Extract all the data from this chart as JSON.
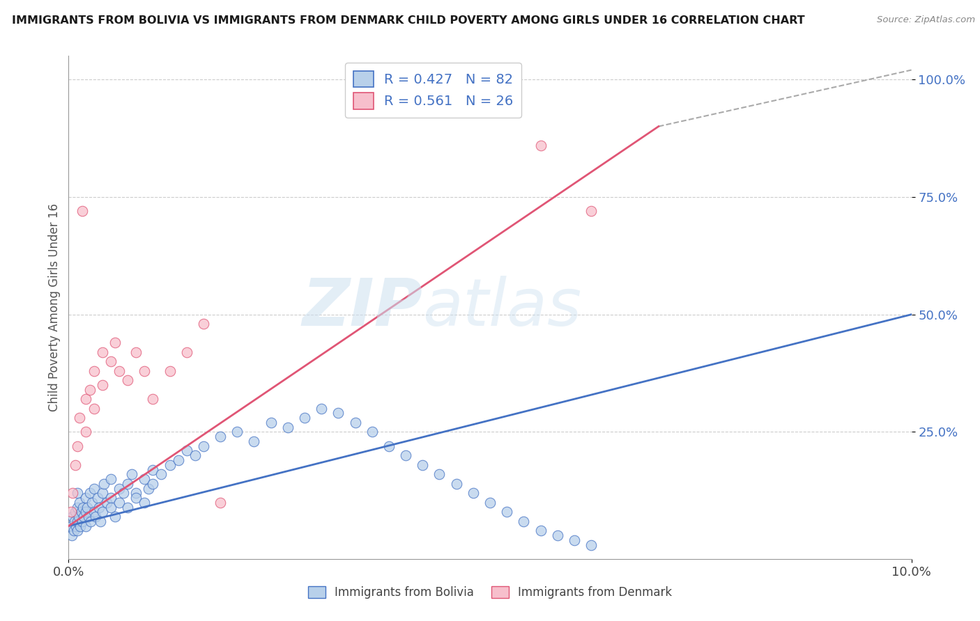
{
  "title": "IMMIGRANTS FROM BOLIVIA VS IMMIGRANTS FROM DENMARK CHILD POVERTY AMONG GIRLS UNDER 16 CORRELATION CHART",
  "source": "Source: ZipAtlas.com",
  "ylabel": "Child Poverty Among Girls Under 16",
  "xlim": [
    0.0,
    0.1
  ],
  "ylim": [
    -0.02,
    1.05
  ],
  "bolivia_R": 0.427,
  "bolivia_N": 82,
  "denmark_R": 0.561,
  "denmark_N": 26,
  "bolivia_color": "#b8d0ea",
  "denmark_color": "#f7bfcc",
  "bolivia_line_color": "#4472c4",
  "denmark_line_color": "#e05575",
  "bolivia_x": [
    0.0003,
    0.0004,
    0.0005,
    0.0006,
    0.0007,
    0.0008,
    0.0009,
    0.001,
    0.001,
    0.001,
    0.001,
    0.0012,
    0.0013,
    0.0014,
    0.0015,
    0.0016,
    0.0017,
    0.0018,
    0.002,
    0.002,
    0.002,
    0.0022,
    0.0024,
    0.0025,
    0.0026,
    0.0028,
    0.003,
    0.003,
    0.0032,
    0.0034,
    0.0036,
    0.0038,
    0.004,
    0.004,
    0.0042,
    0.0045,
    0.005,
    0.005,
    0.005,
    0.0055,
    0.006,
    0.006,
    0.0065,
    0.007,
    0.007,
    0.0075,
    0.008,
    0.008,
    0.009,
    0.009,
    0.0095,
    0.01,
    0.01,
    0.011,
    0.012,
    0.013,
    0.014,
    0.015,
    0.016,
    0.018,
    0.02,
    0.022,
    0.024,
    0.026,
    0.028,
    0.03,
    0.032,
    0.034,
    0.036,
    0.038,
    0.04,
    0.042,
    0.044,
    0.046,
    0.048,
    0.05,
    0.052,
    0.054,
    0.056,
    0.058,
    0.06,
    0.062
  ],
  "bolivia_y": [
    0.05,
    0.03,
    0.07,
    0.04,
    0.06,
    0.08,
    0.05,
    0.06,
    0.09,
    0.12,
    0.04,
    0.07,
    0.1,
    0.05,
    0.08,
    0.06,
    0.09,
    0.07,
    0.08,
    0.11,
    0.05,
    0.09,
    0.07,
    0.12,
    0.06,
    0.1,
    0.08,
    0.13,
    0.07,
    0.11,
    0.09,
    0.06,
    0.12,
    0.08,
    0.14,
    0.1,
    0.11,
    0.09,
    0.15,
    0.07,
    0.13,
    0.1,
    0.12,
    0.14,
    0.09,
    0.16,
    0.12,
    0.11,
    0.15,
    0.1,
    0.13,
    0.14,
    0.17,
    0.16,
    0.18,
    0.19,
    0.21,
    0.2,
    0.22,
    0.24,
    0.25,
    0.23,
    0.27,
    0.26,
    0.28,
    0.3,
    0.29,
    0.27,
    0.25,
    0.22,
    0.2,
    0.18,
    0.16,
    0.14,
    0.12,
    0.1,
    0.08,
    0.06,
    0.04,
    0.03,
    0.02,
    0.01
  ],
  "denmark_x": [
    0.0003,
    0.0005,
    0.0008,
    0.001,
    0.0013,
    0.0016,
    0.002,
    0.002,
    0.0025,
    0.003,
    0.003,
    0.004,
    0.004,
    0.005,
    0.0055,
    0.006,
    0.007,
    0.008,
    0.009,
    0.01,
    0.012,
    0.014,
    0.016,
    0.018,
    0.056,
    0.062
  ],
  "denmark_y": [
    0.08,
    0.12,
    0.18,
    0.22,
    0.28,
    0.72,
    0.32,
    0.25,
    0.34,
    0.3,
    0.38,
    0.35,
    0.42,
    0.4,
    0.44,
    0.38,
    0.36,
    0.42,
    0.38,
    0.32,
    0.38,
    0.42,
    0.48,
    0.1,
    0.86,
    0.72
  ],
  "bolivia_line_x0": 0.0,
  "bolivia_line_y0": 0.05,
  "bolivia_line_x1": 0.1,
  "bolivia_line_y1": 0.5,
  "denmark_line_x0": 0.0,
  "denmark_line_y0": 0.05,
  "denmark_line_x1": 0.07,
  "denmark_line_y1": 0.9,
  "dash_line_x0": 0.07,
  "dash_line_y0": 0.9,
  "dash_line_x1": 0.1,
  "dash_line_y1": 1.02
}
